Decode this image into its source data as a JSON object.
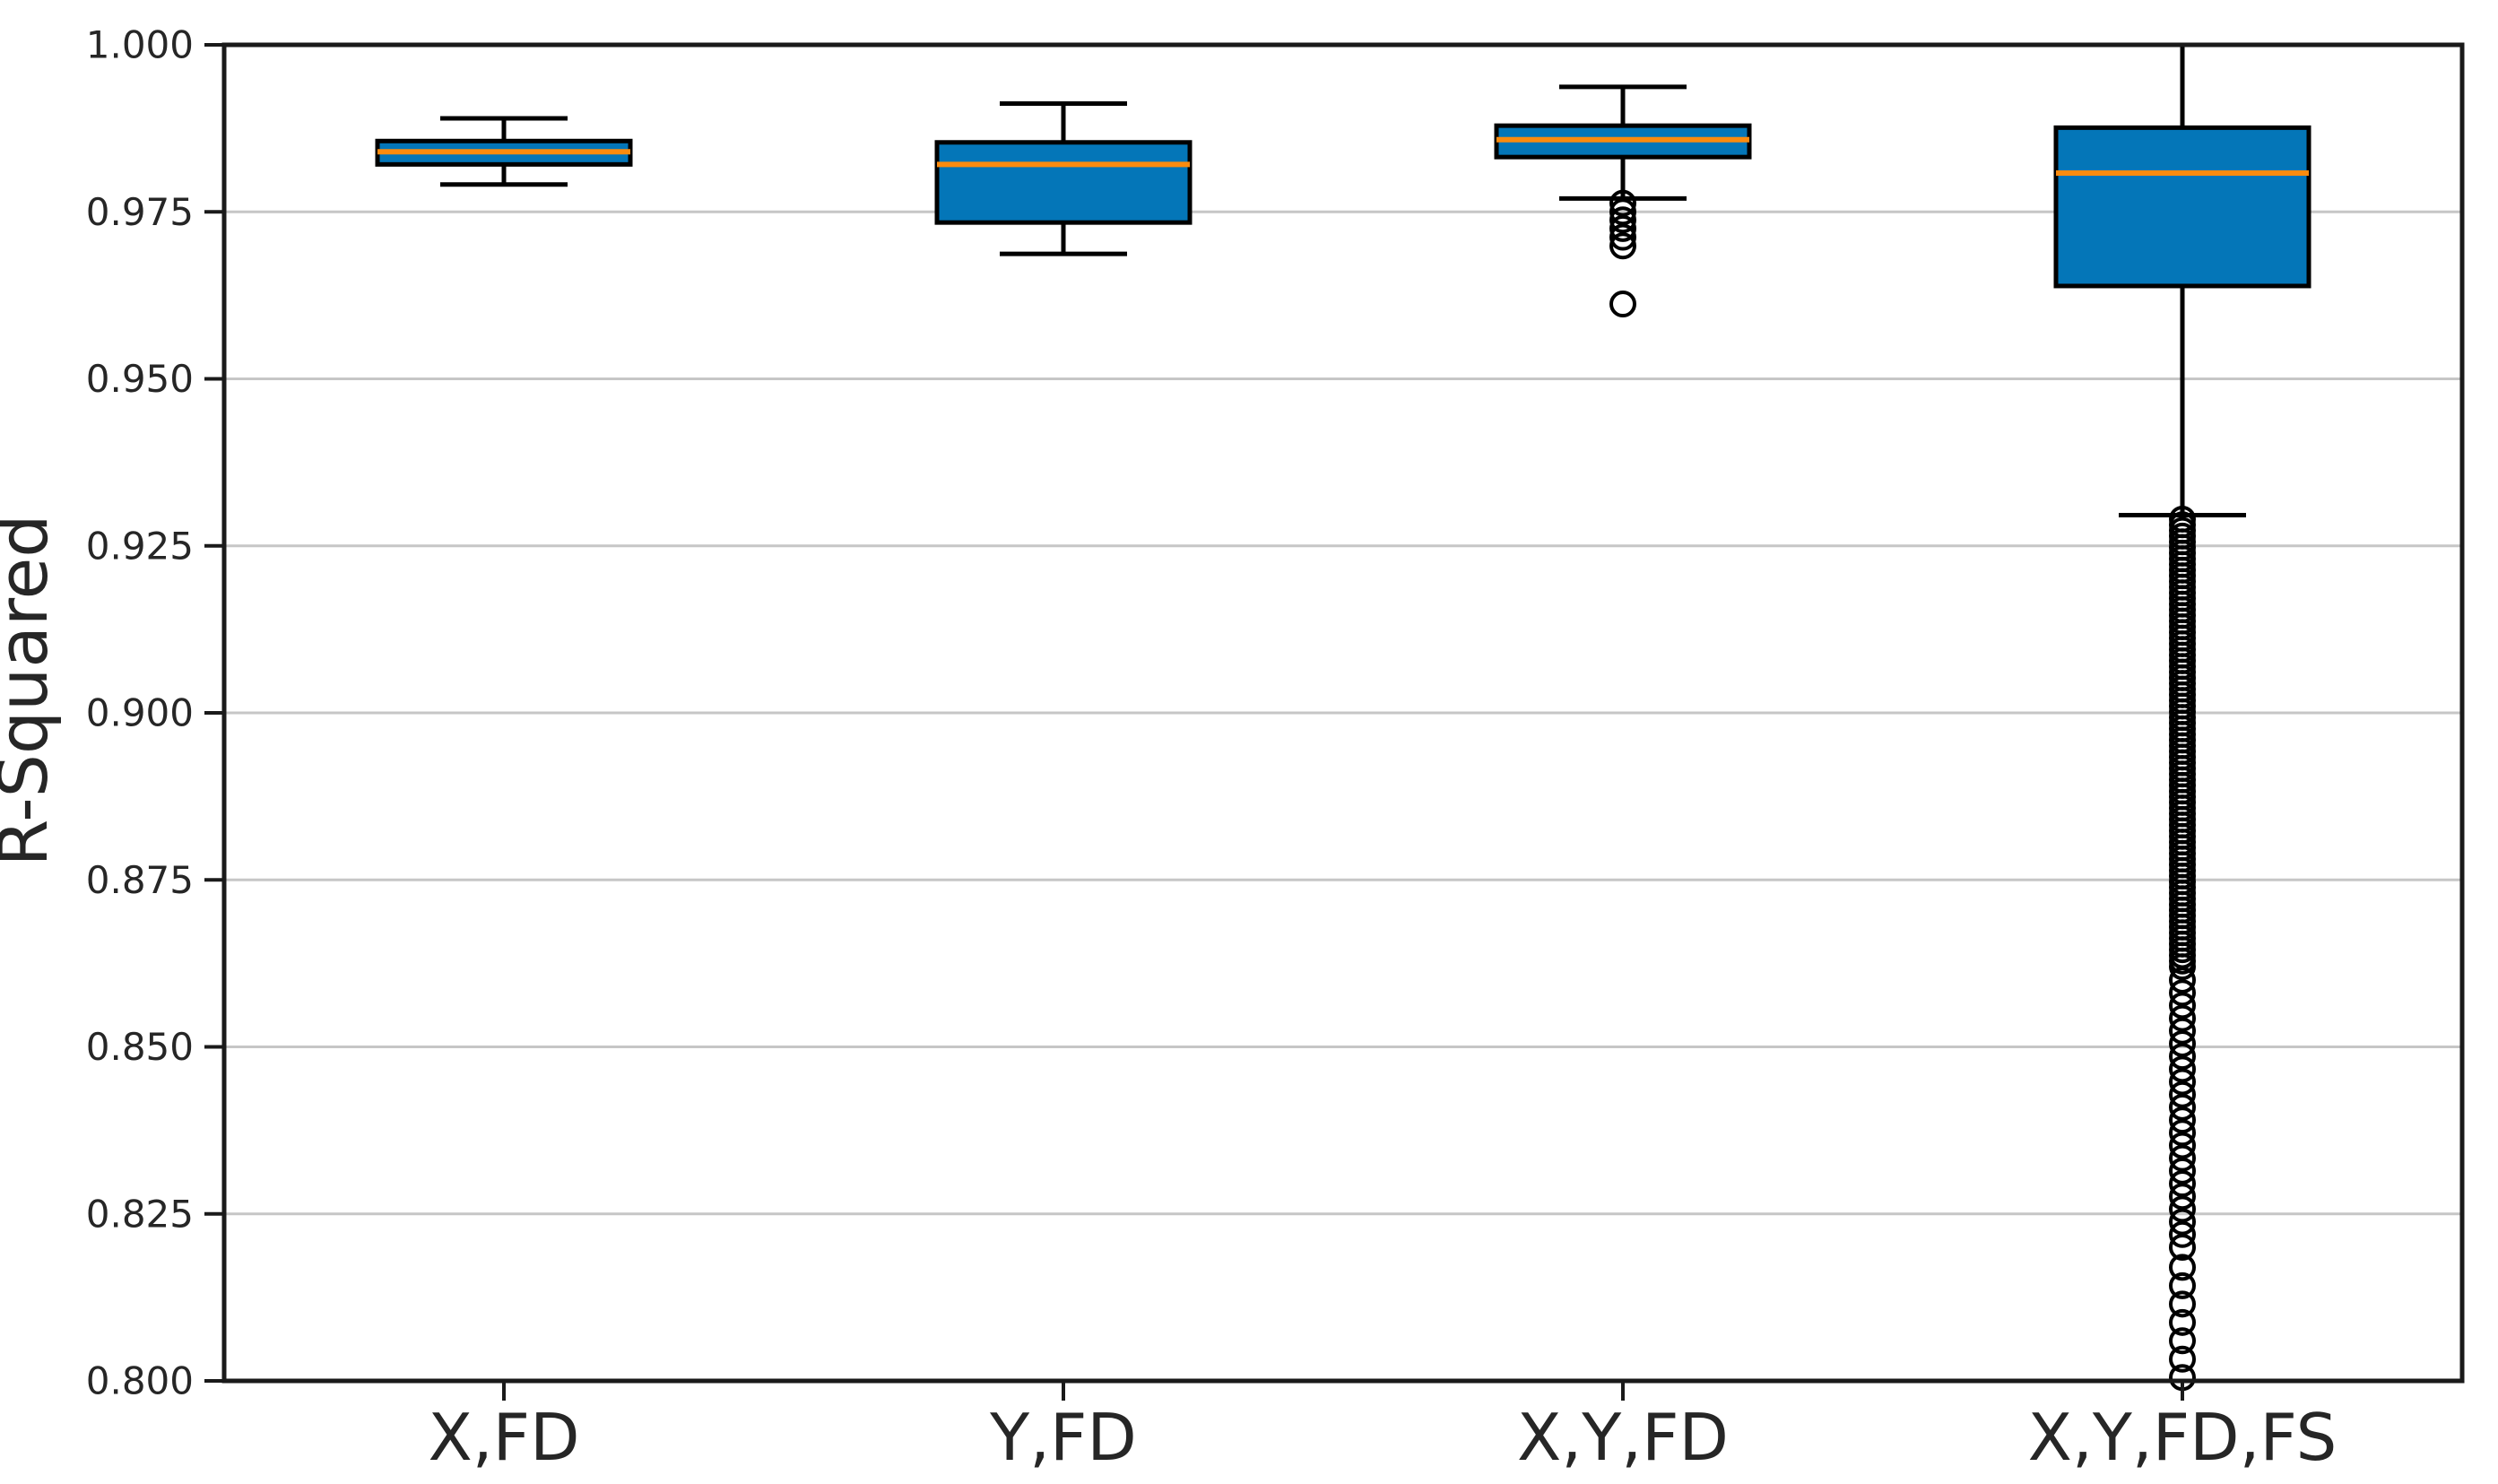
{
  "chart_data": {
    "type": "boxplot",
    "title": "",
    "xlabel": "",
    "ylabel": "R-Squared",
    "ylim": [
      0.8,
      1.0
    ],
    "ytick_step": 0.025,
    "ytick_labels": [
      "1.000",
      "0.975",
      "0.950",
      "0.925",
      "0.900",
      "0.875",
      "0.850",
      "0.825",
      "0.800"
    ],
    "grid": "horizontal-y-gridlines-on",
    "legend": "none",
    "categories": [
      "X,FD",
      "Y,FD",
      "X,Y,FD",
      "X,Y,FD,FS"
    ],
    "series": [
      {
        "label": "X,FD",
        "whislo": 0.9791,
        "q1": 0.9821,
        "med": 0.984,
        "q3": 0.9856,
        "whishi": 0.989,
        "fliers": [],
        "flier_trail": []
      },
      {
        "label": "Y,FD",
        "whislo": 0.9687,
        "q1": 0.9734,
        "med": 0.9821,
        "q3": 0.9854,
        "whishi": 0.9912,
        "fliers": [],
        "flier_trail": []
      },
      {
        "label": "X,Y,FD",
        "whislo": 0.977,
        "q1": 0.9832,
        "med": 0.9858,
        "q3": 0.9879,
        "whishi": 0.9937,
        "fliers": [
          0.9763,
          0.975,
          0.9738,
          0.9725,
          0.9712,
          0.9699,
          0.9612
        ],
        "flier_trail": []
      },
      {
        "label": "X,Y,FD,FS",
        "whislo": 0.9296,
        "q1": 0.9639,
        "med": 0.9808,
        "q3": 0.9876,
        "whishi": 1.0,
        "fliers": [],
        "flier_trail": [
          {
            "from": 0.929,
            "to": 0.862,
            "count": 80
          },
          {
            "from": 0.86,
            "to": 0.82,
            "count": 22
          },
          {
            "from": 0.817,
            "to": 0.8005,
            "count": 7
          }
        ]
      }
    ],
    "colors": {
      "box_fill": "#0476b8",
      "median": "#fb8b0e",
      "box_edge": "#000000",
      "whisker": "#000000",
      "flier_edge": "#000000",
      "grid": "#c6c6c6",
      "spine": "#1a1a1a",
      "tick_text": "#262626"
    }
  }
}
